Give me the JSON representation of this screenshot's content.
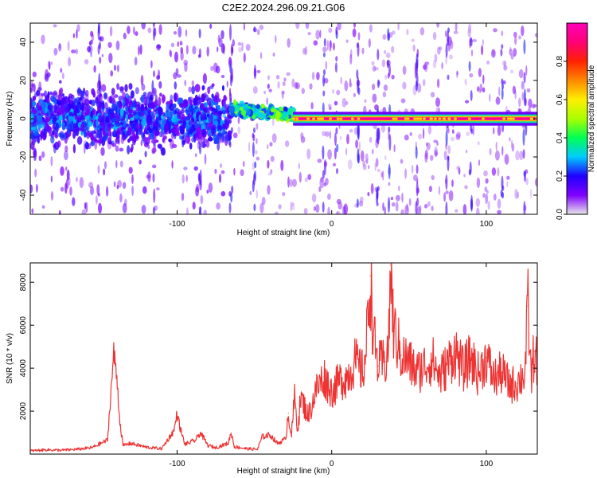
{
  "title": "C2E2.2024.296.09.21.G06",
  "colors": {
    "snr_line": "#ee3333",
    "colorbar_stops": [
      "#e8e8e8",
      "#8000ff",
      "#2000ff",
      "#00ccff",
      "#00ff55",
      "#aaff00",
      "#ffee00",
      "#ff8800",
      "#ff2200",
      "#ff0077",
      "#ff00bb"
    ]
  },
  "chart_data": [
    {
      "type": "heatmap",
      "name": "spectrogram",
      "xlabel": "Height of straight line (km)",
      "ylabel": "Frequency (Hz)",
      "xlim": [
        -195,
        133
      ],
      "ylim": [
        -50,
        50
      ],
      "xticks": [
        -100,
        0,
        100
      ],
      "xtick_labels": [
        "-100",
        "0",
        "100"
      ],
      "yticks": [
        -40,
        -20,
        0,
        20,
        40
      ],
      "ytick_labels": [
        "-40",
        "-20",
        "0",
        "20",
        "40"
      ],
      "colorbar": {
        "label": "Normalized spectral amplitude",
        "range": [
          0,
          1
        ],
        "ticks": [
          0.0,
          0.2,
          0.4,
          0.6,
          0.8
        ],
        "tick_labels": [
          "0.0",
          "0.2",
          "0.4",
          "0.6",
          "0.8"
        ]
      },
      "regions": [
        {
          "x_range": [
            -195,
            -65
          ],
          "freq_spread": 25,
          "amplitude": 0.22
        },
        {
          "x_range": [
            -65,
            -25
          ],
          "freq_center": 5,
          "freq_spread": 8,
          "amplitude": 0.4
        },
        {
          "x_range": [
            -25,
            133
          ],
          "freq_center": 0,
          "freq_spread": 2,
          "amplitude": 0.95
        }
      ],
      "vertical_streaks_x": [
        -150,
        -115,
        -85,
        -65,
        -50,
        -5,
        3,
        17,
        30,
        37,
        55,
        75,
        90,
        110,
        125
      ]
    },
    {
      "type": "line",
      "name": "snr",
      "xlabel": "Height of straight line (km)",
      "ylabel": "SNR (10 * v/v)",
      "xlim": [
        -195,
        133
      ],
      "ylim": [
        0,
        8900
      ],
      "xticks": [
        -100,
        0,
        100
      ],
      "xtick_labels": [
        "-100",
        "0",
        "100"
      ],
      "yticks": [
        2000,
        4000,
        6000,
        8000
      ],
      "ytick_labels": [
        "2000",
        "4000",
        "6000",
        "8000"
      ],
      "x": [
        -195,
        -185,
        -175,
        -165,
        -155,
        -145,
        -143,
        -141,
        -139,
        -137,
        -135,
        -130,
        -120,
        -110,
        -102,
        -100,
        -98,
        -95,
        -88,
        -85,
        -80,
        -75,
        -67,
        -65,
        -63,
        -55,
        -48,
        -45,
        -40,
        -35,
        -30,
        -28,
        -26,
        -24,
        -22,
        -20,
        -15,
        -10,
        -5,
        0,
        5,
        10,
        15,
        20,
        22,
        24,
        25,
        27,
        30,
        35,
        37,
        38,
        40,
        45,
        50,
        55,
        60,
        65,
        70,
        75,
        80,
        85,
        90,
        95,
        100,
        105,
        110,
        115,
        120,
        125,
        127,
        129,
        131,
        133
      ],
      "y": [
        150,
        200,
        180,
        220,
        300,
        650,
        2700,
        4700,
        3600,
        1500,
        400,
        500,
        320,
        250,
        1100,
        1900,
        1200,
        450,
        650,
        1000,
        400,
        300,
        500,
        1000,
        350,
        250,
        220,
        800,
        900,
        500,
        700,
        1900,
        900,
        2600,
        1200,
        2600,
        1800,
        3000,
        3600,
        2900,
        3400,
        3600,
        4300,
        3800,
        4600,
        7000,
        8300,
        5500,
        4100,
        4300,
        5300,
        8800,
        5800,
        4600,
        4300,
        3800,
        4100,
        4400,
        3600,
        4200,
        4800,
        3900,
        4500,
        3700,
        4500,
        3500,
        3800,
        3200,
        3300,
        3800,
        6900,
        3500,
        4800,
        4200
      ]
    }
  ]
}
